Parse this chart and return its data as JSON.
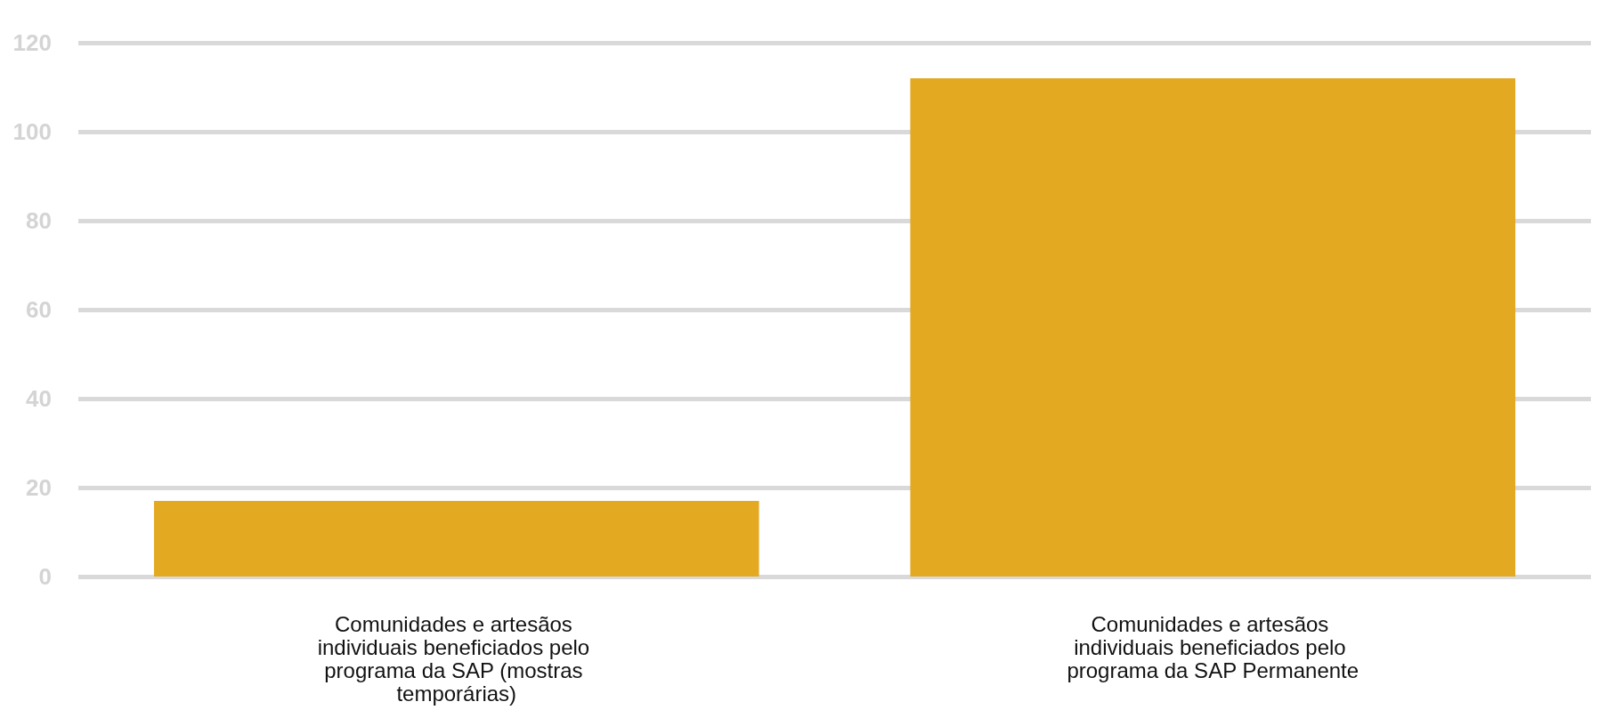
{
  "chart_data": {
    "type": "bar",
    "categories": [
      "Comunidades e artesãos individuais beneficiados pelo programa da SAP (mostras temporárias)",
      "Comunidades e artesãos individuais beneficiados pelo programa da SAP Permanente"
    ],
    "values": [
      17,
      112
    ],
    "color": "#e3a921",
    "ylim": [
      0,
      120
    ],
    "yticks": [
      0,
      20,
      40,
      60,
      80,
      100,
      120
    ],
    "grid": "y"
  }
}
